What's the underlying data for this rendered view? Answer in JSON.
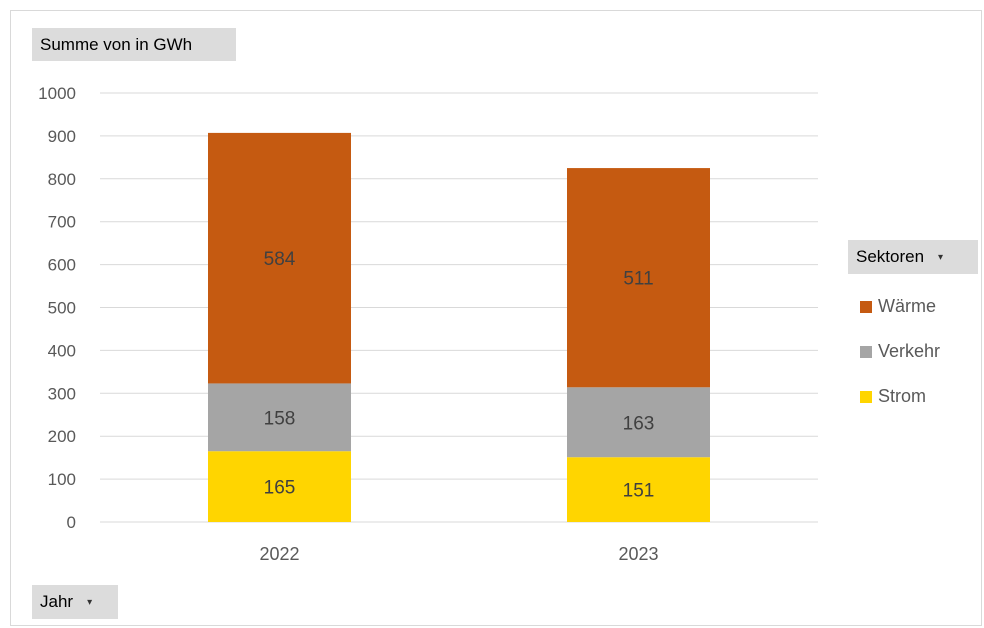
{
  "value_field": {
    "label": "Summe von in GWh"
  },
  "axis_field": {
    "label": "Jahr",
    "arrow": "▾"
  },
  "legend_field": {
    "label": "Sektoren",
    "arrow": "▾"
  },
  "chart_data": {
    "type": "bar",
    "stacked": true,
    "categories": [
      "2022",
      "2023"
    ],
    "series": [
      {
        "name": "Strom",
        "values": [
          165,
          151
        ],
        "color": "#ffd500"
      },
      {
        "name": "Verkehr",
        "values": [
          158,
          163
        ],
        "color": "#a5a5a5"
      },
      {
        "name": "Wärme",
        "values": [
          584,
          511
        ],
        "color": "#c55a11"
      }
    ],
    "legend_order": [
      "Wärme",
      "Verkehr",
      "Strom"
    ],
    "ylim": [
      0,
      1000
    ],
    "yticks": [
      0,
      100,
      200,
      300,
      400,
      500,
      600,
      700,
      800,
      900,
      1000
    ],
    "grid": true,
    "legend_position": "right"
  }
}
